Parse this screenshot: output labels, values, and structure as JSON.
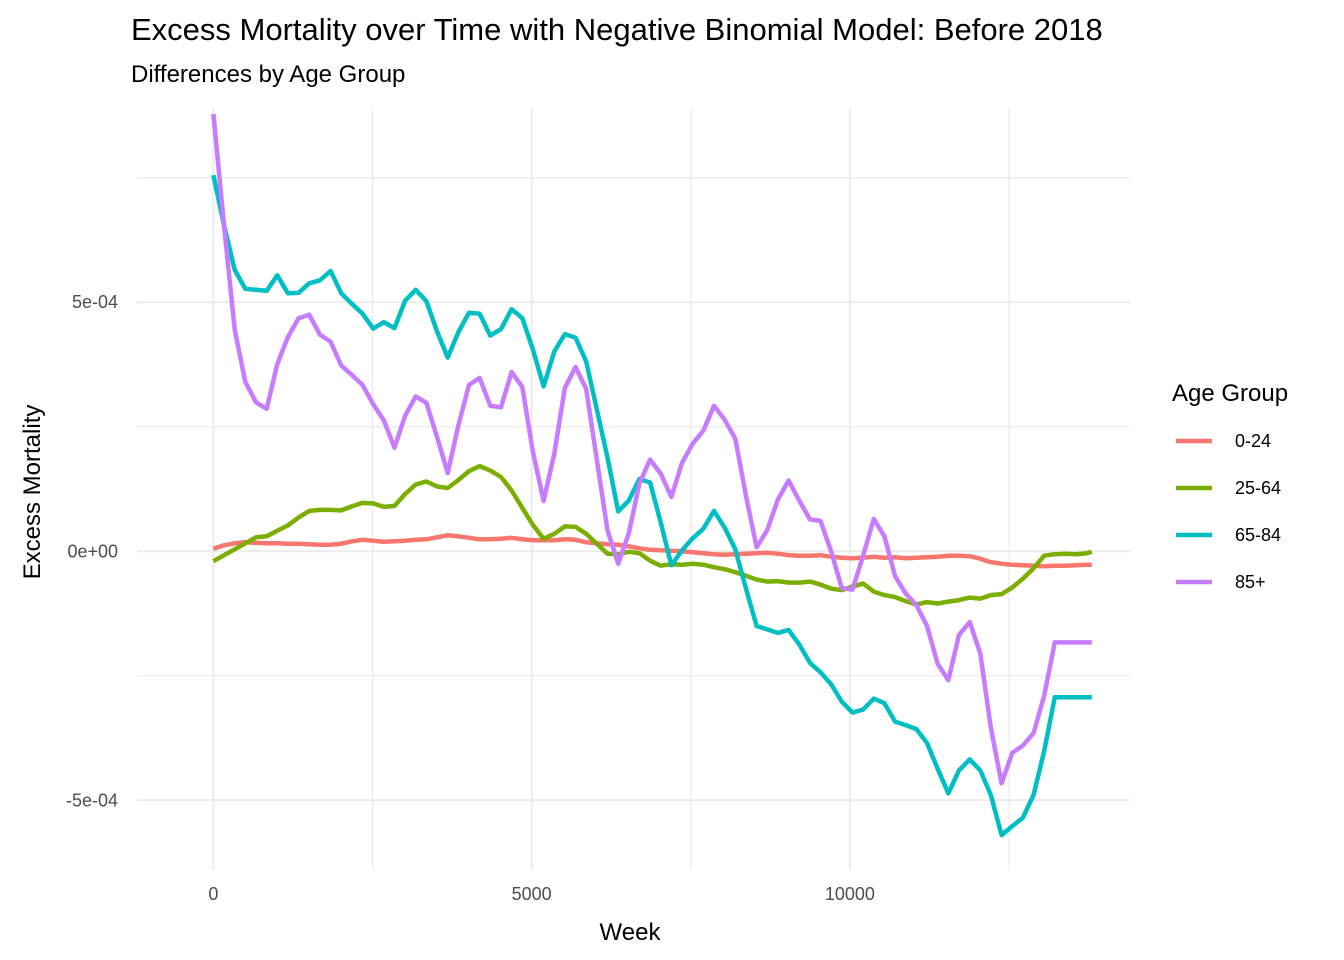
{
  "chart_data": {
    "type": "line",
    "title": "Excess Mortality over Time with Negative Binomial Model: Before 2018",
    "subtitle": "Differences by Age Group",
    "xlabel": "Week",
    "ylabel": "Excess Mortality",
    "xlim": [
      -1200,
      14400
    ],
    "ylim": [
      -0.00064,
      0.00089
    ],
    "x_ticks": [
      0,
      5000,
      10000
    ],
    "x_tick_labels": [
      "0",
      "5000",
      "10000"
    ],
    "y_ticks": [
      -0.0005,
      0,
      0.0005
    ],
    "y_tick_labels": [
      "-5e-04",
      "0e+00",
      "5e-04"
    ],
    "grid": true,
    "legend": {
      "title": "Age Group",
      "position": "right"
    },
    "series": [
      {
        "name": "0-24",
        "color": "#F8766D",
        "x": [
          0,
          167,
          335,
          502,
          669,
          837,
          1004,
          1171,
          1339,
          1506,
          1673,
          1841,
          2008,
          2175,
          2343,
          2510,
          2677,
          2845,
          3012,
          3179,
          3347,
          3514,
          3681,
          3849,
          4016,
          4183,
          4351,
          4518,
          4685,
          4853,
          5020,
          5187,
          5355,
          5522,
          5689,
          5857,
          6024,
          6191,
          6359,
          6526,
          6693,
          6861,
          7028,
          7195,
          7363,
          7530,
          7697,
          7865,
          8032,
          8199,
          8367,
          8534,
          8701,
          8869,
          9036,
          9203,
          9371,
          9538,
          9705,
          9873,
          10040,
          10207,
          10375,
          10542,
          10709,
          10877,
          11044,
          11211,
          11379,
          11546,
          11713,
          11881,
          12048,
          12215,
          12383,
          12550,
          12717,
          12885,
          13052,
          13219,
          13387,
          13554,
          13721,
          13800
        ],
        "y": [
          5e-06,
          1.2e-05,
          1.6e-05,
          1.8e-05,
          1.7e-05,
          1.6e-05,
          1.6e-05,
          1.5e-05,
          1.5e-05,
          1.4e-05,
          1.3e-05,
          1.3e-05,
          1.5e-05,
          2e-05,
          2.3e-05,
          2.1e-05,
          1.9e-05,
          2e-05,
          2.1e-05,
          2.3e-05,
          2.4e-05,
          2.8e-05,
          3.2e-05,
          3e-05,
          2.7e-05,
          2.4e-05,
          2.4e-05,
          2.5e-05,
          2.7e-05,
          2.4e-05,
          2.2e-05,
          2.2e-05,
          2.2e-05,
          2.4e-05,
          2.3e-05,
          1.8e-05,
          1.6e-05,
          1.4e-05,
          1.3e-05,
          1e-05,
          6e-06,
          3e-06,
          2e-06,
          1e-06,
          0,
          -2e-06,
          -4e-06,
          -6e-06,
          -7e-06,
          -6e-06,
          -5e-06,
          -4e-06,
          -3e-06,
          -5e-06,
          -8e-06,
          -9e-06,
          -9e-06,
          -8e-06,
          -1.1e-05,
          -1.3e-05,
          -1.4e-05,
          -1.3e-05,
          -1.1e-05,
          -1.3e-05,
          -1.2e-05,
          -1.4e-05,
          -1.3e-05,
          -1.2e-05,
          -1.1e-05,
          -9e-06,
          -9e-06,
          -1e-05,
          -1.5e-05,
          -2.2e-05,
          -2.5e-05,
          -2.7e-05,
          -2.8e-05,
          -2.9e-05,
          -3e-05,
          -2.9e-05,
          -2.9e-05,
          -2.8e-05,
          -2.7e-05,
          -2.7e-05
        ]
      },
      {
        "name": "25-64",
        "color": "#7CAE00",
        "x": [
          0,
          167,
          335,
          502,
          669,
          837,
          1004,
          1171,
          1339,
          1506,
          1673,
          1841,
          2008,
          2175,
          2343,
          2510,
          2677,
          2845,
          3012,
          3179,
          3347,
          3514,
          3681,
          3849,
          4016,
          4183,
          4351,
          4518,
          4685,
          4853,
          5020,
          5187,
          5355,
          5522,
          5689,
          5857,
          6024,
          6191,
          6359,
          6526,
          6693,
          6861,
          7028,
          7195,
          7363,
          7530,
          7697,
          7865,
          8032,
          8199,
          8367,
          8534,
          8701,
          8869,
          9036,
          9203,
          9371,
          9538,
          9705,
          9873,
          10040,
          10207,
          10375,
          10542,
          10709,
          10877,
          11044,
          11211,
          11379,
          11546,
          11713,
          11881,
          12048,
          12215,
          12383,
          12550,
          12717,
          12885,
          13052,
          13219,
          13387,
          13554,
          13721,
          13800
        ],
        "y": [
          -2e-05,
          -8e-06,
          4e-06,
          1.6e-05,
          2.8e-05,
          3e-05,
          4.1e-05,
          5.2e-05,
          6.8e-05,
          8.1e-05,
          8.3e-05,
          8.3e-05,
          8.2e-05,
          9e-05,
          9.7e-05,
          9.6e-05,
          8.9e-05,
          9.1e-05,
          0.000115,
          0.000134,
          0.00014,
          0.00013,
          0.000127,
          0.000143,
          0.000161,
          0.000171,
          0.000162,
          0.000149,
          0.000122,
          8.7e-05,
          5.3e-05,
          2.5e-05,
          3.5e-05,
          5e-05,
          4.9e-05,
          3.5e-05,
          1.5e-05,
          -5e-06,
          -6e-06,
          -1e-06,
          -4e-06,
          -1.9e-05,
          -2.9e-05,
          -2.6e-05,
          -2.7e-05,
          -2.5e-05,
          -2.7e-05,
          -3.2e-05,
          -3.6e-05,
          -4.2e-05,
          -4.9e-05,
          -5.7e-05,
          -6.1e-05,
          -6e-05,
          -6.3e-05,
          -6.3e-05,
          -6.1e-05,
          -6.7e-05,
          -7.5e-05,
          -7.8e-05,
          -7.1e-05,
          -6.5e-05,
          -8.1e-05,
          -8.8e-05,
          -9.2e-05,
          -0.0001,
          -0.000107,
          -0.000102,
          -0.000105,
          -0.000101,
          -9.8e-05,
          -9.3e-05,
          -9.5e-05,
          -8.8e-05,
          -8.6e-05,
          -7.3e-05,
          -5.5e-05,
          -3.4e-05,
          -9e-06,
          -6e-06,
          -5e-06,
          -6e-06,
          -4e-06,
          -1e-06
        ]
      },
      {
        "name": "65-84",
        "color": "#00BFC4",
        "x": [
          0,
          167,
          335,
          502,
          669,
          837,
          1004,
          1171,
          1339,
          1506,
          1673,
          1841,
          2008,
          2175,
          2343,
          2510,
          2677,
          2845,
          3012,
          3179,
          3347,
          3514,
          3681,
          3849,
          4016,
          4183,
          4351,
          4518,
          4685,
          4853,
          5020,
          5187,
          5355,
          5522,
          5689,
          5857,
          6024,
          6191,
          6359,
          6526,
          6693,
          6861,
          7028,
          7195,
          7363,
          7530,
          7697,
          7865,
          8032,
          8199,
          8367,
          8534,
          8701,
          8869,
          9036,
          9203,
          9371,
          9538,
          9705,
          9873,
          10040,
          10207,
          10375,
          10542,
          10709,
          10877,
          11044,
          11211,
          11379,
          11546,
          11713,
          11881,
          12048,
          12215,
          12383,
          12550,
          12717,
          12885,
          13052,
          13219,
          13387,
          13554,
          13721,
          13800
        ],
        "y": [
          0.000755,
          0.000655,
          0.000565,
          0.000527,
          0.000525,
          0.000523,
          0.000554,
          0.000518,
          0.000519,
          0.000538,
          0.000544,
          0.000563,
          0.000518,
          0.000497,
          0.000477,
          0.000447,
          0.00046,
          0.000448,
          0.000503,
          0.000525,
          0.000502,
          0.000441,
          0.000389,
          0.00044,
          0.000479,
          0.000477,
          0.000433,
          0.000446,
          0.000486,
          0.000468,
          0.000405,
          0.000331,
          0.000401,
          0.000436,
          0.000429,
          0.000381,
          0.000285,
          0.000188,
          8e-05,
          0.000102,
          0.000145,
          0.000138,
          5.8e-05,
          -2.8e-05,
          2e-06,
          2.6e-05,
          4.5e-05,
          8.1e-05,
          4.7e-05,
          4e-06,
          -7.5e-05,
          -0.00015,
          -0.000157,
          -0.000164,
          -0.000158,
          -0.000187,
          -0.000224,
          -0.000243,
          -0.000267,
          -0.000302,
          -0.000324,
          -0.000318,
          -0.000296,
          -0.000305,
          -0.000342,
          -0.000349,
          -0.000357,
          -0.000385,
          -0.000437,
          -0.000486,
          -0.00044,
          -0.000418,
          -0.00044,
          -0.00049,
          -0.00057,
          -0.000552,
          -0.000535,
          -0.000489,
          -0.000401,
          -0.000293,
          -0.000293,
          -0.000293,
          -0.000293,
          -0.000293
        ]
      },
      {
        "name": "85+",
        "color": "#C77CFF",
        "x": [
          0,
          167,
          335,
          502,
          669,
          837,
          1004,
          1171,
          1339,
          1506,
          1673,
          1841,
          2008,
          2175,
          2343,
          2510,
          2677,
          2845,
          3012,
          3179,
          3347,
          3514,
          3681,
          3849,
          4016,
          4183,
          4351,
          4518,
          4685,
          4853,
          5020,
          5187,
          5355,
          5522,
          5689,
          5857,
          6024,
          6191,
          6359,
          6526,
          6693,
          6861,
          7028,
          7195,
          7363,
          7530,
          7697,
          7865,
          8032,
          8199,
          8367,
          8534,
          8701,
          8869,
          9036,
          9203,
          9371,
          9538,
          9705,
          9873,
          10040,
          10207,
          10375,
          10542,
          10709,
          10877,
          11044,
          11211,
          11379,
          11546,
          11713,
          11881,
          12048,
          12215,
          12383,
          12550,
          12717,
          12885,
          13052,
          13219,
          13387,
          13554,
          13721,
          13800
        ],
        "y": [
          0.000878,
          0.000655,
          0.000445,
          0.00034,
          0.000299,
          0.000286,
          0.000376,
          0.00043,
          0.000468,
          0.000475,
          0.000435,
          0.000421,
          0.000373,
          0.000354,
          0.000334,
          0.000295,
          0.000263,
          0.000208,
          0.000272,
          0.000311,
          0.000298,
          0.000229,
          0.000157,
          0.000253,
          0.000334,
          0.000348,
          0.000292,
          0.000289,
          0.00036,
          0.00033,
          0.0002,
          0.000101,
          0.000196,
          0.000328,
          0.00037,
          0.000326,
          0.000184,
          4.2e-05,
          -2.5e-05,
          3.6e-05,
          0.000136,
          0.000184,
          0.000156,
          0.000109,
          0.000178,
          0.000216,
          0.000242,
          0.000292,
          0.000264,
          0.000226,
          0.000111,
          8e-06,
          4.2e-05,
          0.000104,
          0.000142,
          0.000102,
          6.4e-05,
          6.1e-05,
          0.0,
          -7.4e-05,
          -7.7e-05,
          -9e-06,
          6.5e-05,
          3e-05,
          -5e-05,
          -8.5e-05,
          -0.000108,
          -0.00015,
          -0.000226,
          -0.000259,
          -0.000168,
          -0.000142,
          -0.000205,
          -0.000355,
          -0.000466,
          -0.000405,
          -0.00039,
          -0.000365,
          -0.00029,
          -0.000183,
          -0.000183,
          -0.000183,
          -0.000183,
          -0.000183
        ]
      }
    ]
  }
}
